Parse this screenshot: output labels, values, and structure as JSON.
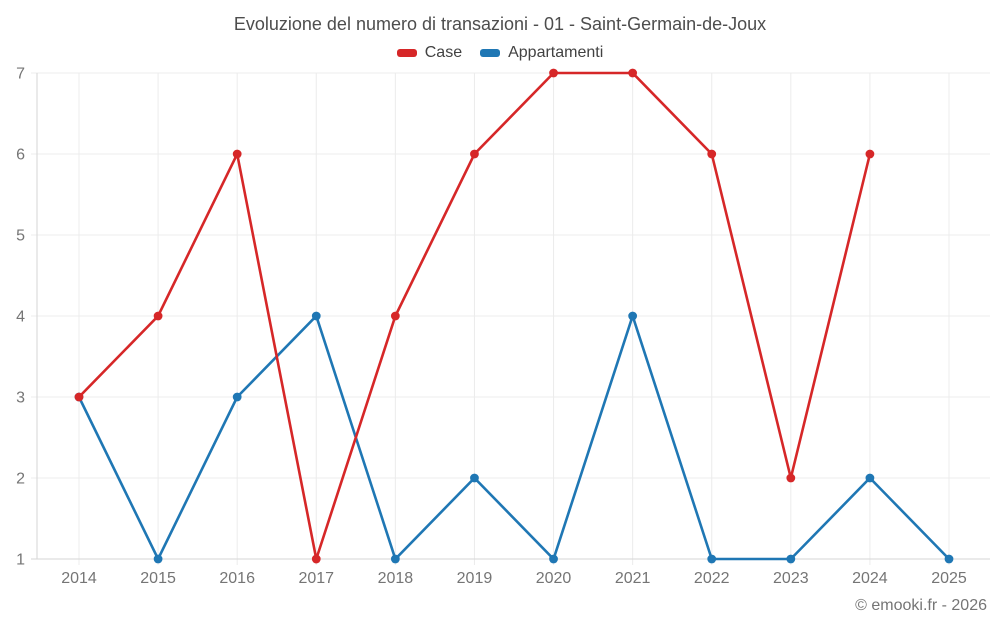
{
  "title": "Evoluzione del numero di transazioni - 01 - Saint-Germain-de-Joux",
  "footer": "© emooki.fr - 2026",
  "colors": {
    "case": "#d62728",
    "appartamenti": "#1f77b4",
    "grid": "#ececec",
    "axis": "#d6d6d6",
    "tick_label": "#757575",
    "title_text": "#4d4d4d",
    "legend_text": "#424242"
  },
  "chart_data": {
    "type": "line",
    "categories": [
      "2014",
      "2015",
      "2016",
      "2017",
      "2018",
      "2019",
      "2020",
      "2021",
      "2022",
      "2023",
      "2024",
      "2025"
    ],
    "series": [
      {
        "name": "Case",
        "color": "#d62728",
        "values": [
          3,
          4,
          6,
          1,
          4,
          6,
          7,
          7,
          6,
          2,
          6,
          null
        ]
      },
      {
        "name": "Appartamenti",
        "color": "#1f77b4",
        "values": [
          3,
          1,
          3,
          4,
          1,
          2,
          1,
          4,
          1,
          1,
          2,
          1
        ]
      }
    ],
    "title": "Evoluzione del numero di transazioni - 01 - Saint-Germain-de-Joux",
    "xlabel": "",
    "ylabel": "",
    "ylim": [
      1,
      7
    ],
    "yticks": [
      1,
      2,
      3,
      4,
      5,
      6,
      7
    ],
    "grid": true,
    "legend_position": "top",
    "marker": "circle"
  }
}
